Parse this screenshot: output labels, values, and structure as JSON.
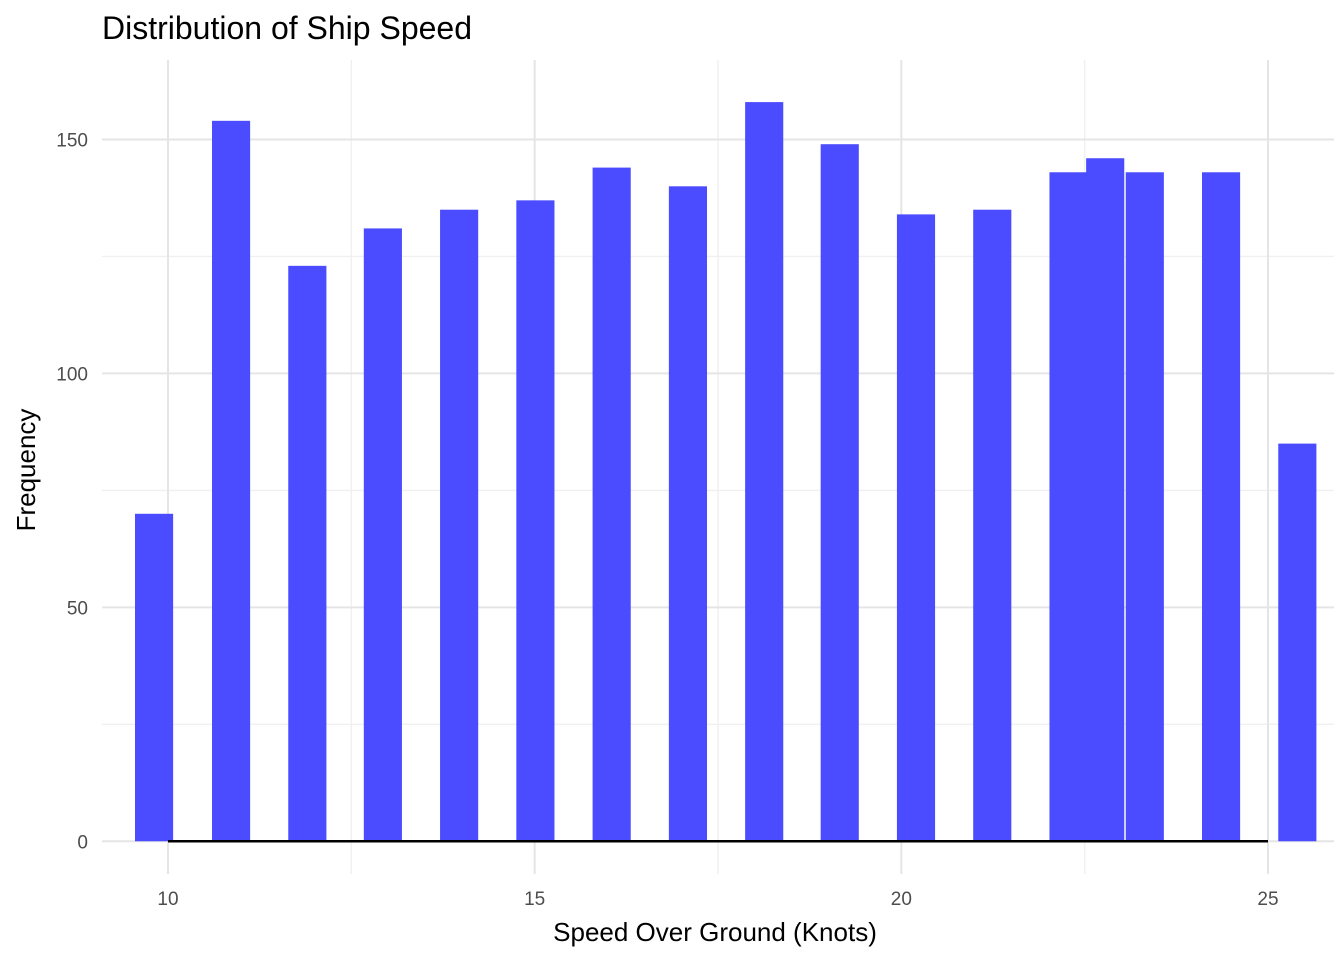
{
  "chart_data": {
    "type": "bar",
    "title": "Distribution of Ship Speed",
    "xlabel": "Speed Over Ground (Knots)",
    "ylabel": "Frequency",
    "xlim": [
      9.1,
      25.9
    ],
    "ylim": [
      -7,
      167
    ],
    "x_ticks": [
      10,
      15,
      20,
      25
    ],
    "y_ticks": [
      0,
      50,
      100,
      150
    ],
    "bar_color": "#4b4bff",
    "grid": true,
    "bars": [
      {
        "x0": 9.55,
        "x1": 10.07,
        "value": 70
      },
      {
        "x0": 10.6,
        "x1": 11.12,
        "value": 154
      },
      {
        "x0": 11.64,
        "x1": 12.16,
        "value": 123
      },
      {
        "x0": 12.67,
        "x1": 13.19,
        "value": 131
      },
      {
        "x0": 13.71,
        "x1": 14.23,
        "value": 135
      },
      {
        "x0": 14.75,
        "x1": 15.27,
        "value": 137
      },
      {
        "x0": 15.79,
        "x1": 16.31,
        "value": 144
      },
      {
        "x0": 16.83,
        "x1": 17.35,
        "value": 140
      },
      {
        "x0": 17.87,
        "x1": 18.39,
        "value": 158
      },
      {
        "x0": 18.9,
        "x1": 19.42,
        "value": 149
      },
      {
        "x0": 19.94,
        "x1": 20.46,
        "value": 134
      },
      {
        "x0": 20.98,
        "x1": 21.5,
        "value": 135
      },
      {
        "x0": 22.02,
        "x1": 22.54,
        "value": 143
      },
      {
        "x0": 22.52,
        "x1": 23.04,
        "value": 146
      },
      {
        "x0": 23.06,
        "x1": 23.58,
        "value": 143
      },
      {
        "x0": 24.1,
        "x1": 24.62,
        "value": 143
      },
      {
        "x0": 25.14,
        "x1": 25.66,
        "value": 85
      }
    ],
    "baseline": {
      "x0": 10,
      "x1": 25,
      "y": 0,
      "color": "#000000"
    }
  }
}
